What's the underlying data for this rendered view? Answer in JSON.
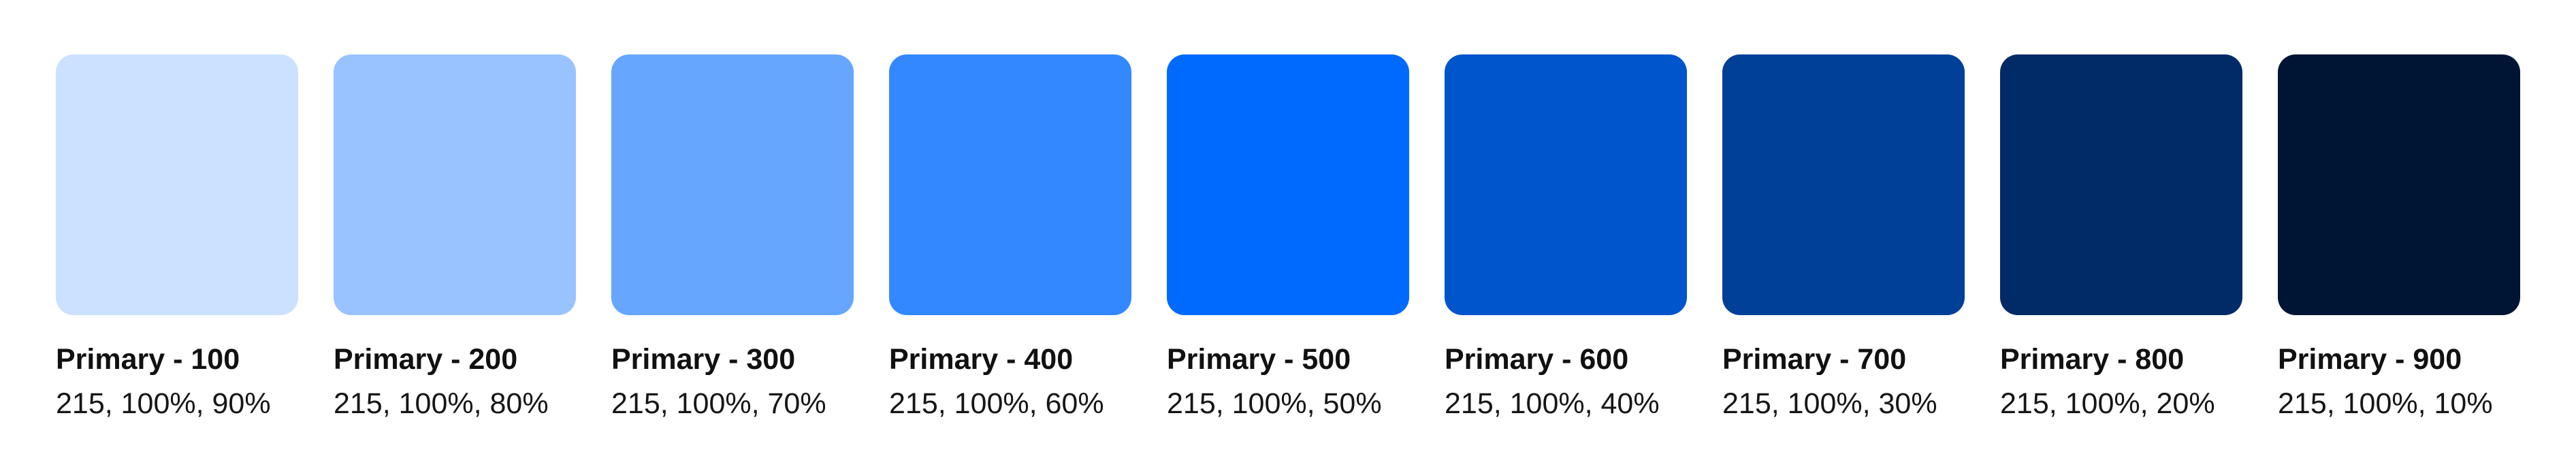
{
  "page": {
    "background": "#FFFFFF",
    "text_color": "#111111"
  },
  "palette": {
    "hue": "215",
    "saturation": "100%",
    "swatches": [
      {
        "name": "Primary - 100",
        "hsl": "215, 100%, 90%",
        "color": "#CCE1FF"
      },
      {
        "name": "Primary - 200",
        "hsl": "215, 100%, 80%",
        "color": "#99C3FF"
      },
      {
        "name": "Primary - 300",
        "hsl": "215, 100%, 70%",
        "color": "#66A6FF"
      },
      {
        "name": "Primary - 400",
        "hsl": "215, 100%, 60%",
        "color": "#3388FF"
      },
      {
        "name": "Primary - 500",
        "hsl": "215, 100%, 50%",
        "color": "#006AFF"
      },
      {
        "name": "Primary - 600",
        "hsl": "215, 100%, 40%",
        "color": "#0055CC"
      },
      {
        "name": "Primary - 700",
        "hsl": "215, 100%, 30%",
        "color": "#004099"
      },
      {
        "name": "Primary - 800",
        "hsl": "215, 100%, 20%",
        "color": "#002B66"
      },
      {
        "name": "Primary - 900",
        "hsl": "215, 100%, 10%",
        "color": "#001533"
      }
    ]
  }
}
